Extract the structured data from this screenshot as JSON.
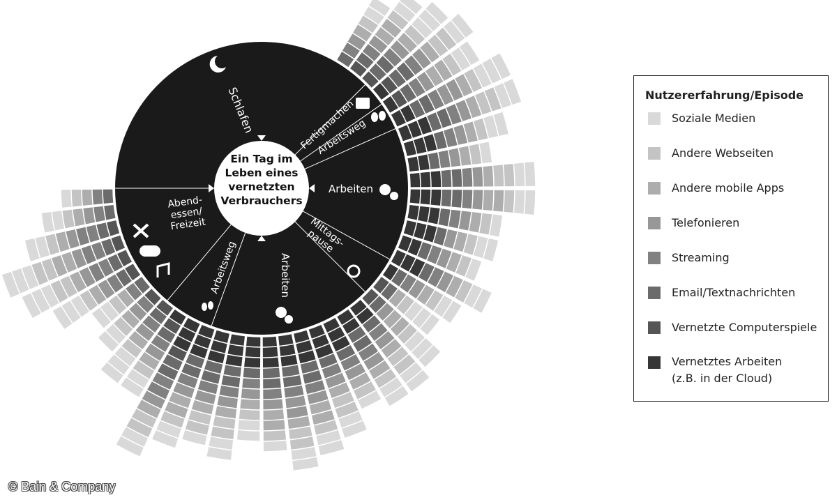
{
  "chart_data": {
    "type": "radial",
    "center_title": "Ein Tag im Leben eines vernetzten Verbrauchers",
    "legend_title": "Nutzererfahrung/Episode",
    "copyright": "© Bain & Company",
    "episodes": [
      {
        "label": [
          "Schlafen"
        ]
      },
      {
        "label": [
          "Fertigmachen"
        ]
      },
      {
        "label": [
          "Arbeitsweg"
        ]
      },
      {
        "label": [
          "Arbeiten"
        ]
      },
      {
        "label": [
          "Mittags-",
          "pause"
        ]
      },
      {
        "label": [
          "Arbeiten"
        ]
      },
      {
        "label": [
          "Arbeitsweg"
        ]
      },
      {
        "label": [
          "Abend-",
          "essen/",
          "Freizeit"
        ]
      }
    ],
    "categories": [
      null,
      null,
      null,
      null,
      null,
      null,
      null,
      null,
      null,
      null,
      null,
      null,
      null,
      null,
      null,
      null,
      null,
      null,
      null,
      null,
      null,
      null,
      null,
      null,
      null,
      null,
      null,
      null,
      null,
      null,
      null,
      null,
      null,
      null,
      null,
      null,
      null,
      null,
      null,
      null
    ],
    "series": [
      {
        "name": "Soziale Medien",
        "color": "#d9d9d9",
        "values": [
          2,
          2,
          3,
          2,
          2,
          3,
          2,
          2,
          1,
          2,
          2,
          1,
          2,
          1,
          2,
          2,
          3,
          3,
          2,
          2,
          1,
          2,
          2,
          2,
          1,
          2,
          2,
          1,
          2,
          2,
          2,
          3,
          2,
          2,
          3,
          3,
          3,
          2,
          2,
          1
        ]
      },
      {
        "name": "Andere Webseiten",
        "color": "#c4c4c4",
        "values": [
          1,
          1,
          1,
          2,
          1,
          1,
          2,
          1,
          1,
          2,
          1,
          1,
          1,
          1,
          1,
          1,
          1,
          1,
          2,
          1,
          1,
          2,
          1,
          2,
          1,
          1,
          2,
          2,
          1,
          2,
          1,
          1,
          1,
          1,
          1,
          2,
          2,
          1,
          1,
          1
        ]
      },
      {
        "name": "Andere mobile Apps",
        "color": "#adadad",
        "values": [
          1,
          2,
          1,
          1,
          2,
          1,
          1,
          1,
          1,
          1,
          2,
          1,
          1,
          1,
          1,
          1,
          1,
          2,
          1,
          1,
          1,
          1,
          2,
          1,
          2,
          1,
          1,
          1,
          2,
          1,
          1,
          1,
          1,
          1,
          1,
          1,
          2,
          1,
          1,
          1
        ]
      },
      {
        "name": "Telefonieren",
        "color": "#979797",
        "values": [
          1,
          1,
          1,
          1,
          1,
          2,
          1,
          1,
          1,
          1,
          1,
          1,
          1,
          1,
          1,
          1,
          0,
          1,
          1,
          1,
          1,
          1,
          1,
          2,
          1,
          1,
          1,
          1,
          1,
          1,
          1,
          1,
          1,
          0,
          1,
          1,
          1,
          1,
          1,
          0
        ]
      },
      {
        "name": "Streaming",
        "color": "#818181",
        "values": [
          1,
          1,
          1,
          1,
          1,
          1,
          1,
          1,
          1,
          1,
          1,
          1,
          0,
          1,
          1,
          1,
          0,
          0,
          1,
          1,
          1,
          1,
          1,
          1,
          1,
          1,
          1,
          1,
          1,
          2,
          1,
          1,
          1,
          1,
          1,
          2,
          2,
          2,
          1,
          1
        ]
      },
      {
        "name": "Email/Textnachrichten",
        "color": "#6b6b6b",
        "values": [
          1,
          1,
          2,
          2,
          1,
          2,
          2,
          1,
          1,
          2,
          2,
          1,
          1,
          1,
          1,
          1,
          1,
          1,
          1,
          2,
          1,
          1,
          2,
          2,
          2,
          1,
          2,
          2,
          2,
          2,
          1,
          1,
          0,
          1,
          1,
          1,
          1,
          1,
          1,
          1
        ]
      },
      {
        "name": "Vernetzte Computerspiele",
        "color": "#555555",
        "values": [
          0,
          1,
          1,
          1,
          1,
          0,
          0,
          0,
          0,
          0,
          0,
          0,
          0,
          0,
          0,
          0,
          1,
          1,
          0,
          0,
          0,
          0,
          0,
          0,
          0,
          0,
          0,
          0,
          0,
          1,
          1,
          1,
          1,
          0,
          1,
          1,
          1,
          1,
          0,
          0
        ]
      },
      {
        "name": "Vernetztes Arbeiten (z.B. in der Cloud)",
        "color": "#363636",
        "values": [
          0,
          0,
          0,
          1,
          1,
          2,
          3,
          3,
          2,
          3,
          3,
          3,
          3,
          2,
          3,
          1,
          0,
          0,
          2,
          2,
          3,
          3,
          3,
          3,
          3,
          3,
          3,
          3,
          3,
          3,
          1,
          0,
          0,
          0,
          0,
          0,
          0,
          0,
          0,
          0
        ]
      }
    ]
  }
}
